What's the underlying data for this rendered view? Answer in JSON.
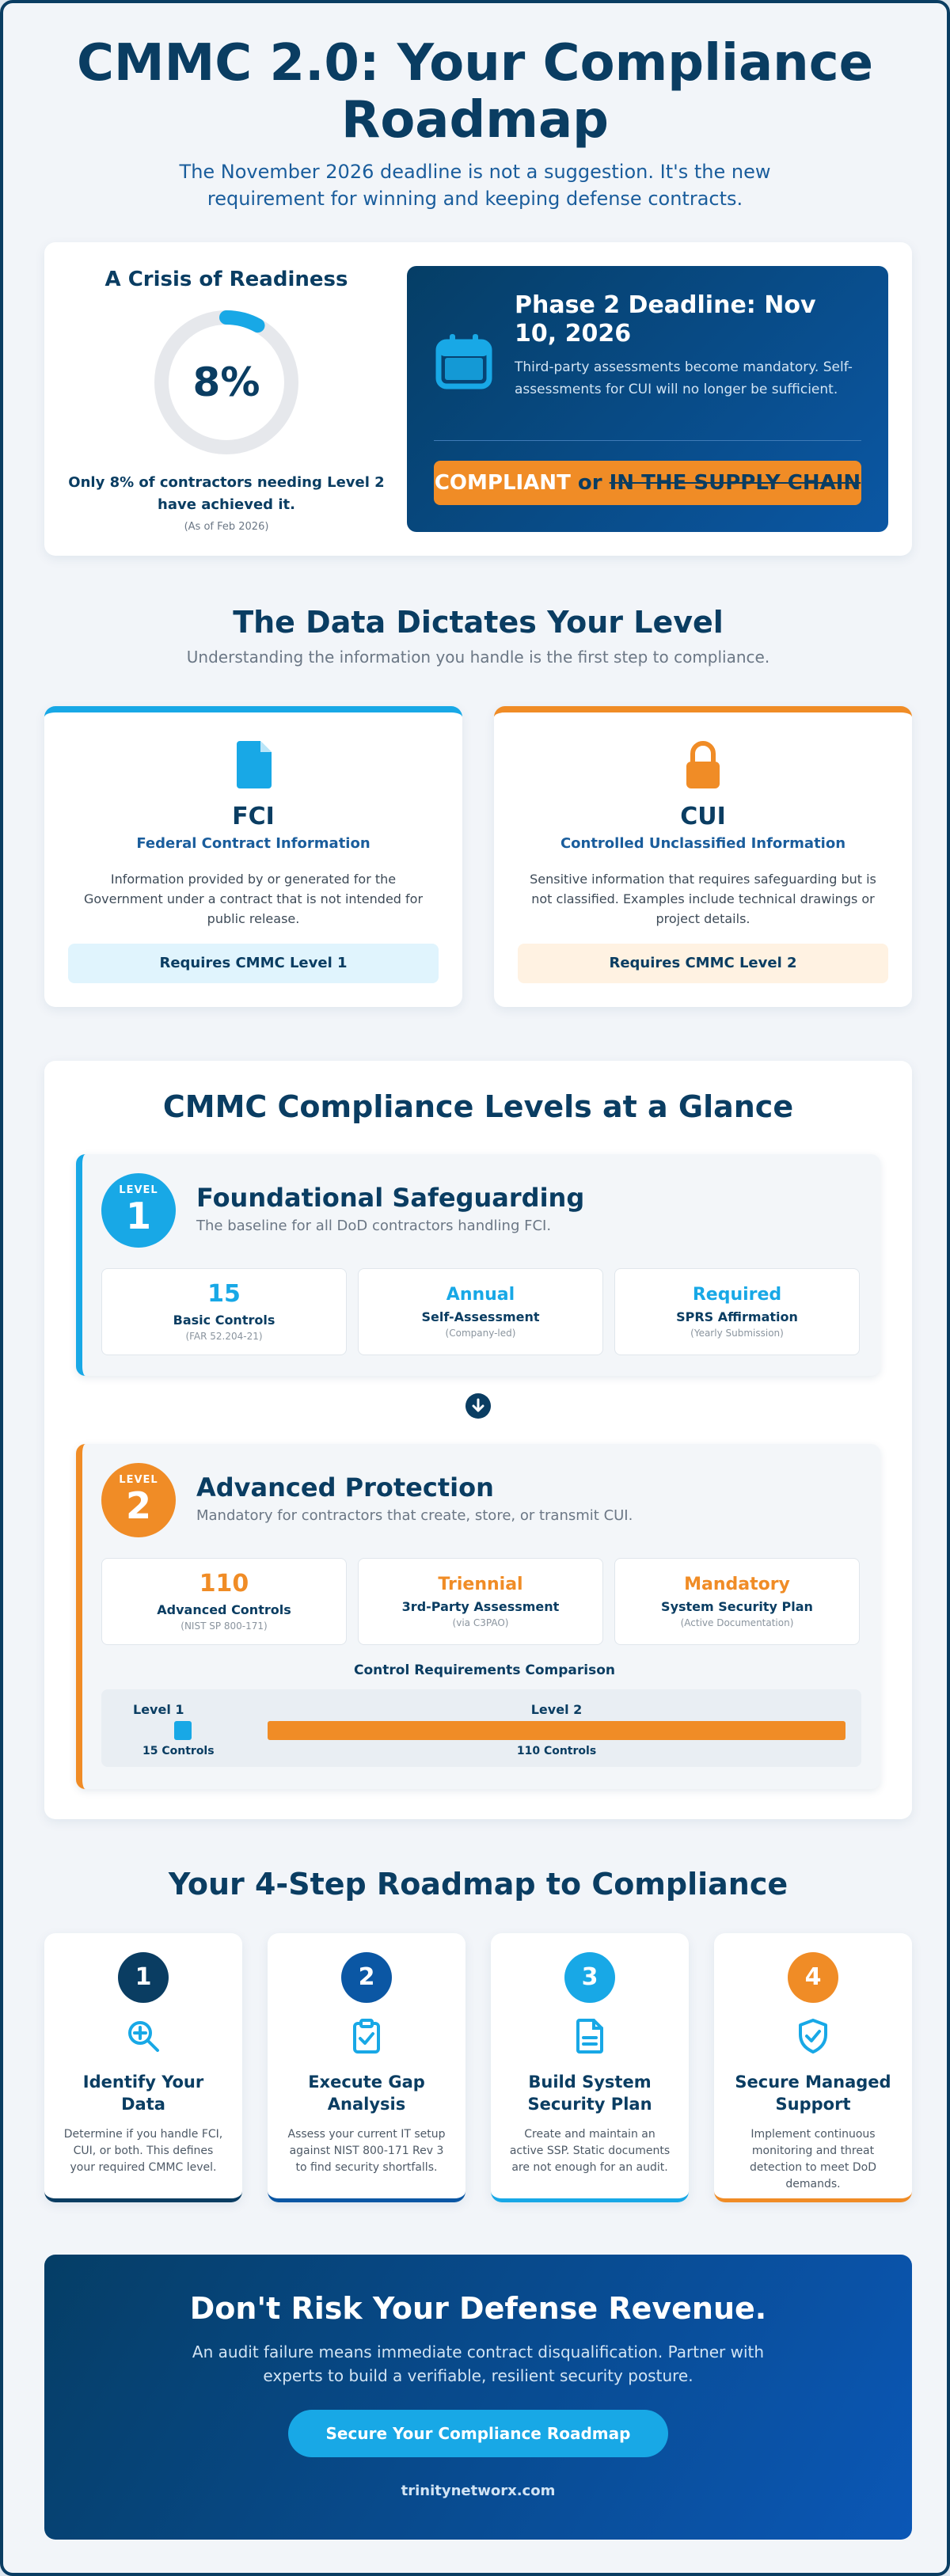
{
  "header": {
    "title": "CMMC 2.0: Your Compliance Roadmap",
    "subtitle": "The November 2026 deadline is not a suggestion. It's the new requirement for winning and keeping defense contracts."
  },
  "crisis": {
    "heading": "A Crisis of Readiness",
    "percent_label": "8%",
    "percent_value": 0.08,
    "text": "Only 8% of contractors needing Level 2 have achieved it.",
    "note": "(As of Feb 2026)"
  },
  "deadline": {
    "title": "Phase 2 Deadline: Nov 10, 2026",
    "description": "Third-party assessments become mandatory. Self-assessments for CUI will no longer be sufficient.",
    "banner_compliant": "COMPLIANT",
    "banner_or": "or",
    "banner_out": "IN THE SUPPLY CHAIN"
  },
  "data_section": {
    "title": "The Data Dictates Your Level",
    "subtitle": "Understanding the information you handle is the first step to compliance."
  },
  "fci": {
    "name": "FCI",
    "full": "Federal Contract Information",
    "description": "Information provided by or generated for the Government under a contract that is not intended for public release.",
    "requirement": "Requires CMMC Level 1"
  },
  "cui": {
    "name": "CUI",
    "full": "Controlled Unclassified Information",
    "description": "Sensitive information that requires safeguarding but is not classified. Examples include technical drawings or project details.",
    "requirement": "Requires CMMC Level 2"
  },
  "levels": {
    "title": "CMMC Compliance Levels at a Glance",
    "level1": {
      "badge_label": "LEVEL",
      "badge_number": "1",
      "name": "Foundational Safeguarding",
      "description": "The baseline for all DoD contractors handling FCI.",
      "stats": [
        {
          "value": "15",
          "label": "Basic Controls",
          "sub": "(FAR 52.204-21)"
        },
        {
          "value": "Annual",
          "label": "Self-Assessment",
          "sub": "(Company-led)"
        },
        {
          "value": "Required",
          "label": "SPRS Affirmation",
          "sub": "(Yearly Submission)"
        }
      ]
    },
    "level2": {
      "badge_label": "LEVEL",
      "badge_number": "2",
      "name": "Advanced Protection",
      "description": "Mandatory for contractors that create, store, or transmit CUI.",
      "stats": [
        {
          "value": "110",
          "label": "Advanced Controls",
          "sub": "(NIST SP 800-171)"
        },
        {
          "value": "Triennial",
          "label": "3rd-Party Assessment",
          "sub": "(via C3PAO)"
        },
        {
          "value": "Mandatory",
          "label": "System Security Plan",
          "sub": "(Active Documentation)"
        }
      ]
    },
    "comparison": {
      "title": "Control Requirements Comparison",
      "l1_label": "Level 1",
      "l1_count": "15 Controls",
      "l2_label": "Level 2",
      "l2_count": "110 Controls"
    }
  },
  "steps": {
    "title": "Your 4-Step Roadmap to Compliance",
    "items": [
      {
        "num": "1",
        "title": "Identify Your Data",
        "description": "Determine if you handle FCI, CUI, or both. This defines your required CMMC level.",
        "color": "#0a3d62",
        "icon": "search-plus-icon"
      },
      {
        "num": "2",
        "title": "Execute Gap Analysis",
        "description": "Assess your current IT setup against NIST 800-171 Rev 3 to find security shortfalls.",
        "color": "#0b57a4",
        "icon": "clipboard-check-icon"
      },
      {
        "num": "3",
        "title": "Build System Security Plan",
        "description": "Create and maintain an active SSP. Static documents are not enough for an audit.",
        "color": "#18a8e6",
        "icon": "document-icon"
      },
      {
        "num": "4",
        "title": "Secure Managed Support",
        "description": "Implement continuous monitoring and threat detection to meet DoD demands.",
        "color": "#f08c26",
        "icon": "shield-check-icon"
      }
    ]
  },
  "cta": {
    "title": "Don't Risk Your Defense Revenue.",
    "description": "An audit failure means immediate contract disqualification. Partner with experts to build a verifiable, resilient security posture.",
    "button": "Secure Your Compliance Roadmap",
    "url": "trinitynetworx.com"
  },
  "colors": {
    "navy": "#0a3d62",
    "blue": "#0b57a4",
    "sky": "#18a8e6",
    "orange": "#f08c26"
  }
}
